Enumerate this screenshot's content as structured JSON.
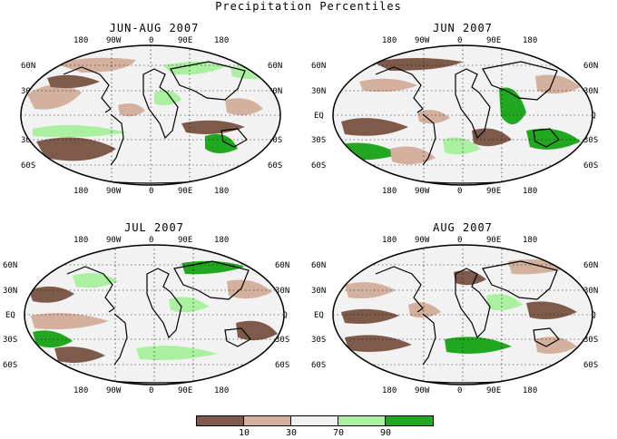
{
  "figure_title": "Precipitation Percentiles",
  "panels": [
    {
      "title": "JUN-AUG 2007"
    },
    {
      "title": "JUN 2007"
    },
    {
      "title": "JUL 2007"
    },
    {
      "title": "AUG 2007"
    }
  ],
  "lon_labels": [
    "180",
    "90W",
    "0",
    "90E",
    "180"
  ],
  "lat_labels": [
    "60N",
    "30N",
    "EQ",
    "30S",
    "60S"
  ],
  "legend": {
    "colors": [
      "#7e5a4a",
      "#d4b09e",
      "#f2f2f2",
      "#aaf0a0",
      "#22a820"
    ],
    "labels": [
      "10",
      "30",
      "70",
      "90"
    ]
  },
  "palette": {
    "dry_strong": "#7e5a4a",
    "dry": "#d4b09e",
    "normal": "#f2f2f2",
    "wet": "#aaf0a0",
    "wet_strong": "#22a820",
    "coast": "#000000"
  }
}
